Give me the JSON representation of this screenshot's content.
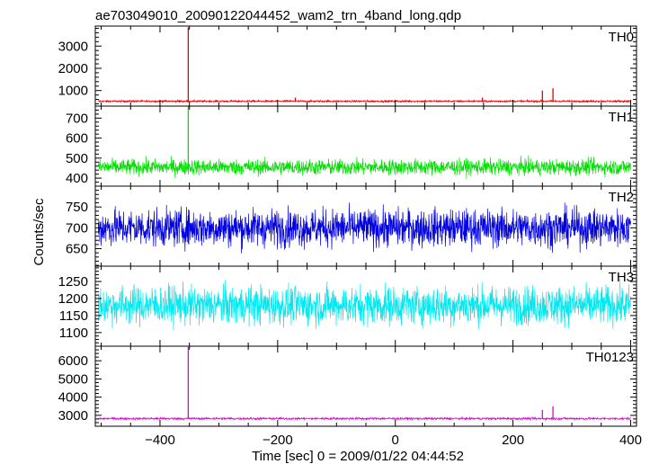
{
  "chart_data": {
    "type": "line",
    "title": "ae703049010_20090122044452_wam2_trn_4band_long.qdp",
    "xlabel": "Time [sec] 0 = 2009/01/22 04:44:52",
    "ylabel": "Counts/sec",
    "xlim": [
      -510,
      410
    ],
    "xticks": [
      -400,
      -200,
      0,
      200,
      400
    ],
    "panels": [
      {
        "name": "TH0",
        "color": "#e00000",
        "ylim": [
          300,
          3900
        ],
        "yticks": [
          1000,
          2000,
          3000
        ],
        "baseline": 520,
        "noise": 30,
        "spikes": [
          {
            "x": -352,
            "y": 3850
          },
          {
            "x": 250,
            "y": 1000
          },
          {
            "x": 268,
            "y": 1100
          },
          {
            "x": -170,
            "y": 680
          },
          {
            "x": 148,
            "y": 680
          }
        ]
      },
      {
        "name": "TH1",
        "color": "#00e000",
        "ylim": [
          360,
          760
        ],
        "yticks": [
          400,
          500,
          600,
          700
        ],
        "baseline": 455,
        "noise": 28,
        "spikes": [
          {
            "x": -352,
            "y": 760
          }
        ]
      },
      {
        "name": "TH2",
        "color": "#0000e0",
        "ylim": [
          608,
          800
        ],
        "yticks": [
          650,
          700,
          750
        ],
        "baseline": 700,
        "noise": 32,
        "spikes": []
      },
      {
        "name": "TH3",
        "color": "#00e8f0",
        "ylim": [
          1060,
          1295
        ],
        "yticks": [
          1100,
          1150,
          1200,
          1250
        ],
        "baseline": 1180,
        "noise": 40,
        "spikes": []
      },
      {
        "name": "TH0123",
        "color": "#e000e0",
        "ylim": [
          2400,
          6800
        ],
        "yticks": [
          3000,
          4000,
          5000,
          6000
        ],
        "baseline": 2820,
        "noise": 45,
        "spikes": [
          {
            "x": -352,
            "y": 6750
          },
          {
            "x": 250,
            "y": 3300
          },
          {
            "x": 268,
            "y": 3500
          }
        ]
      }
    ]
  }
}
